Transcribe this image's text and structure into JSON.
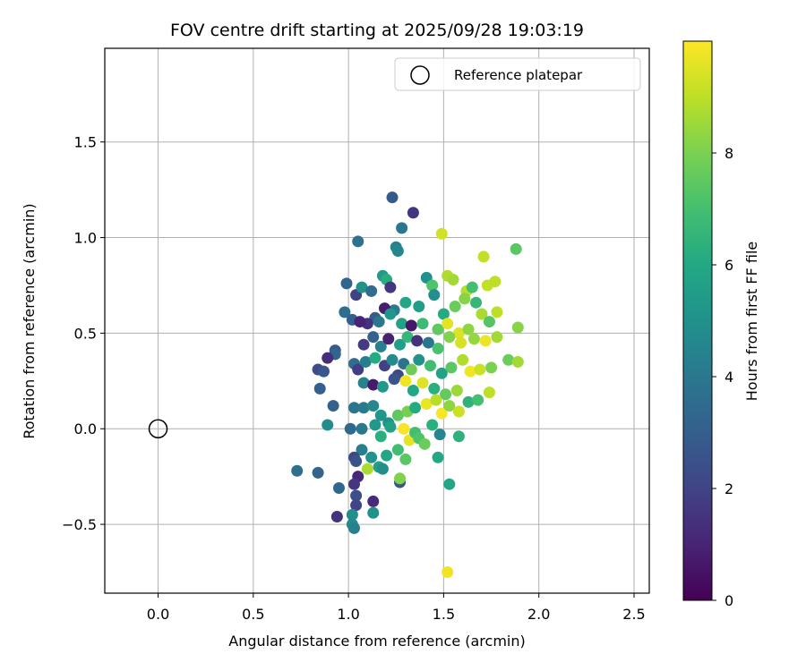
{
  "chart_data": {
    "type": "scatter",
    "title": "FOV centre drift starting at 2025/09/28 19:03:19",
    "xlabel": "Angular distance from reference (arcmin)",
    "ylabel": "Rotation from reference (arcmin)",
    "xlim": [
      -0.28,
      2.58
    ],
    "ylim": [
      -0.86,
      1.99
    ],
    "xticks": [
      0.0,
      0.5,
      1.0,
      1.5,
      2.0,
      2.5
    ],
    "xtick_labels": [
      "0.0",
      "0.5",
      "1.0",
      "1.5",
      "2.0",
      "2.5"
    ],
    "yticks": [
      -0.5,
      0.0,
      0.5,
      1.0,
      1.5
    ],
    "ytick_labels": [
      "−0.5",
      "0.0",
      "0.5",
      "1.0",
      "1.5"
    ],
    "grid": true,
    "legend": {
      "position": "top-right",
      "entries": [
        "Reference platepar"
      ]
    },
    "reference_point": {
      "label": "Reference platepar",
      "x": 0.0,
      "y": 0.0
    },
    "colorbar": {
      "label": "Hours from first FF file",
      "colormap": "viridis",
      "range": [
        0,
        10
      ],
      "ticks": [
        0,
        2,
        4,
        6,
        8
      ],
      "tick_labels": [
        "0",
        "2",
        "4",
        "6",
        "8"
      ]
    },
    "point_columns": [
      "x",
      "y",
      "hours"
    ],
    "points": [
      [
        1.23,
        1.21,
        2.8
      ],
      [
        1.34,
        1.13,
        1.5
      ],
      [
        1.05,
        0.98,
        3.7
      ],
      [
        1.25,
        0.95,
        4.4
      ],
      [
        1.26,
        0.93,
        4.6
      ],
      [
        1.28,
        1.05,
        3.9
      ],
      [
        1.49,
        1.02,
        9.3
      ],
      [
        1.71,
        0.9,
        9.1
      ],
      [
        1.88,
        0.94,
        7.4
      ],
      [
        1.04,
        0.7,
        1.9
      ],
      [
        0.99,
        0.76,
        3.2
      ],
      [
        1.07,
        0.74,
        5.1
      ],
      [
        1.12,
        0.72,
        3.5
      ],
      [
        1.18,
        0.8,
        5.4
      ],
      [
        1.2,
        0.78,
        6.2
      ],
      [
        1.22,
        0.74,
        1.6
      ],
      [
        1.41,
        0.79,
        5.0
      ],
      [
        1.44,
        0.75,
        7.2
      ],
      [
        1.52,
        0.8,
        8.8
      ],
      [
        1.55,
        0.78,
        8.6
      ],
      [
        1.62,
        0.72,
        8.9
      ],
      [
        1.65,
        0.74,
        7.0
      ],
      [
        1.73,
        0.75,
        9.1
      ],
      [
        1.77,
        0.77,
        9.0
      ],
      [
        1.67,
        0.66,
        6.6
      ],
      [
        1.61,
        0.68,
        8.2
      ],
      [
        1.56,
        0.64,
        7.7
      ],
      [
        1.5,
        0.6,
        6.1
      ],
      [
        1.45,
        0.7,
        4.9
      ],
      [
        1.37,
        0.64,
        5.5
      ],
      [
        1.3,
        0.66,
        5.9
      ],
      [
        1.24,
        0.62,
        4.1
      ],
      [
        1.19,
        0.63,
        0.8
      ],
      [
        1.14,
        0.58,
        2.9
      ],
      [
        1.1,
        0.55,
        1.4
      ],
      [
        0.98,
        0.61,
        3.6
      ],
      [
        1.02,
        0.57,
        3.0
      ],
      [
        1.06,
        0.56,
        1.0
      ],
      [
        1.16,
        0.56,
        4.0
      ],
      [
        1.22,
        0.6,
        5.2
      ],
      [
        1.28,
        0.55,
        5.7
      ],
      [
        1.33,
        0.54,
        0.6
      ],
      [
        1.39,
        0.55,
        6.8
      ],
      [
        1.47,
        0.52,
        7.5
      ],
      [
        1.52,
        0.55,
        9.6
      ],
      [
        1.58,
        0.5,
        9.5
      ],
      [
        1.63,
        0.52,
        8.3
      ],
      [
        1.7,
        0.6,
        8.7
      ],
      [
        1.74,
        0.56,
        7.3
      ],
      [
        1.78,
        0.61,
        9.0
      ],
      [
        1.89,
        0.53,
        8.2
      ],
      [
        1.08,
        0.44,
        1.7
      ],
      [
        1.13,
        0.48,
        3.1
      ],
      [
        1.17,
        0.43,
        4.3
      ],
      [
        1.21,
        0.47,
        0.9
      ],
      [
        1.27,
        0.44,
        5.6
      ],
      [
        1.31,
        0.48,
        6.6
      ],
      [
        1.36,
        0.46,
        1.4
      ],
      [
        1.42,
        0.45,
        3.9
      ],
      [
        1.47,
        0.42,
        7.1
      ],
      [
        1.53,
        0.48,
        8.1
      ],
      [
        1.59,
        0.45,
        9.4
      ],
      [
        1.66,
        0.47,
        8.4
      ],
      [
        1.72,
        0.46,
        9.7
      ],
      [
        1.78,
        0.48,
        8.6
      ],
      [
        1.84,
        0.36,
        7.7
      ],
      [
        0.93,
        0.41,
        2.8
      ],
      [
        0.93,
        0.39,
        3.2
      ],
      [
        0.89,
        0.37,
        1.3
      ],
      [
        0.84,
        0.31,
        2.3
      ],
      [
        0.87,
        0.3,
        2.7
      ],
      [
        0.85,
        0.21,
        3.0
      ],
      [
        1.03,
        0.34,
        3.5
      ],
      [
        1.05,
        0.31,
        1.8
      ],
      [
        1.09,
        0.35,
        4.2
      ],
      [
        1.14,
        0.37,
        6.1
      ],
      [
        1.19,
        0.33,
        1.9
      ],
      [
        1.23,
        0.36,
        4.7
      ],
      [
        1.26,
        0.28,
        2.2
      ],
      [
        1.29,
        0.34,
        3.8
      ],
      [
        1.33,
        0.31,
        7.8
      ],
      [
        1.37,
        0.36,
        5.1
      ],
      [
        1.43,
        0.33,
        6.9
      ],
      [
        1.49,
        0.29,
        5.8
      ],
      [
        1.54,
        0.32,
        7.4
      ],
      [
        1.6,
        0.36,
        8.8
      ],
      [
        1.64,
        0.3,
        9.8
      ],
      [
        1.69,
        0.31,
        9.2
      ],
      [
        1.75,
        0.32,
        8.0
      ],
      [
        1.89,
        0.35,
        8.6
      ],
      [
        1.08,
        0.24,
        4.4
      ],
      [
        1.13,
        0.23,
        0.7
      ],
      [
        1.18,
        0.22,
        5.3
      ],
      [
        1.24,
        0.26,
        2.6
      ],
      [
        1.3,
        0.25,
        9.8
      ],
      [
        1.34,
        0.2,
        5.9
      ],
      [
        1.39,
        0.24,
        9.5
      ],
      [
        1.45,
        0.21,
        6.3
      ],
      [
        1.51,
        0.18,
        7.6
      ],
      [
        1.57,
        0.2,
        8.5
      ],
      [
        1.63,
        0.14,
        6.4
      ],
      [
        1.68,
        0.15,
        7.0
      ],
      [
        1.74,
        0.19,
        9.0
      ],
      [
        0.92,
        0.12,
        3.1
      ],
      [
        0.89,
        0.02,
        4.8
      ],
      [
        1.03,
        0.11,
        3.9
      ],
      [
        1.08,
        0.11,
        4.1
      ],
      [
        1.13,
        0.12,
        4.6
      ],
      [
        1.17,
        0.07,
        5.2
      ],
      [
        1.21,
        0.03,
        5.0
      ],
      [
        1.26,
        0.07,
        7.5
      ],
      [
        1.31,
        0.09,
        7.9
      ],
      [
        1.35,
        0.11,
        6.1
      ],
      [
        1.41,
        0.13,
        9.7
      ],
      [
        1.46,
        0.15,
        8.9
      ],
      [
        1.49,
        0.08,
        9.9
      ],
      [
        1.53,
        0.12,
        8.3
      ],
      [
        1.58,
        0.09,
        9.2
      ],
      [
        1.01,
        0.0,
        3.4
      ],
      [
        1.07,
        0.0,
        4.0
      ],
      [
        1.14,
        0.02,
        5.3
      ],
      [
        1.22,
        0.01,
        5.7
      ],
      [
        1.29,
        0.0,
        9.9
      ],
      [
        1.32,
        -0.06,
        9.6
      ],
      [
        1.35,
        -0.02,
        7.0
      ],
      [
        1.44,
        0.02,
        6.3
      ],
      [
        1.48,
        -0.03,
        4.5
      ],
      [
        1.58,
        -0.04,
        6.4
      ],
      [
        1.07,
        -0.11,
        4.2
      ],
      [
        1.12,
        -0.15,
        5.1
      ],
      [
        1.17,
        -0.04,
        6.3
      ],
      [
        1.2,
        -0.14,
        5.9
      ],
      [
        1.26,
        -0.11,
        6.9
      ],
      [
        1.3,
        -0.16,
        7.4
      ],
      [
        1.37,
        -0.05,
        7.2
      ],
      [
        1.4,
        -0.08,
        7.7
      ],
      [
        1.47,
        -0.15,
        6.0
      ],
      [
        0.73,
        -0.22,
        3.6
      ],
      [
        0.84,
        -0.23,
        3.2
      ],
      [
        1.03,
        -0.15,
        2.2
      ],
      [
        1.04,
        -0.17,
        2.6
      ],
      [
        1.05,
        -0.25,
        1.1
      ],
      [
        1.1,
        -0.21,
        8.7
      ],
      [
        1.16,
        -0.2,
        5.5
      ],
      [
        1.18,
        -0.21,
        4.9
      ],
      [
        1.27,
        -0.28,
        2.7
      ],
      [
        1.27,
        -0.26,
        8.1
      ],
      [
        1.53,
        -0.29,
        5.9
      ],
      [
        0.95,
        -0.31,
        3.3
      ],
      [
        1.03,
        -0.29,
        1.6
      ],
      [
        1.04,
        -0.35,
        2.4
      ],
      [
        1.04,
        -0.4,
        2.0
      ],
      [
        1.13,
        -0.38,
        1.2
      ],
      [
        0.94,
        -0.46,
        1.4
      ],
      [
        1.02,
        -0.45,
        4.9
      ],
      [
        1.13,
        -0.44,
        5.0
      ],
      [
        1.02,
        -0.5,
        4.7
      ],
      [
        1.03,
        -0.52,
        4.3
      ],
      [
        1.52,
        -0.75,
        9.8
      ]
    ]
  }
}
